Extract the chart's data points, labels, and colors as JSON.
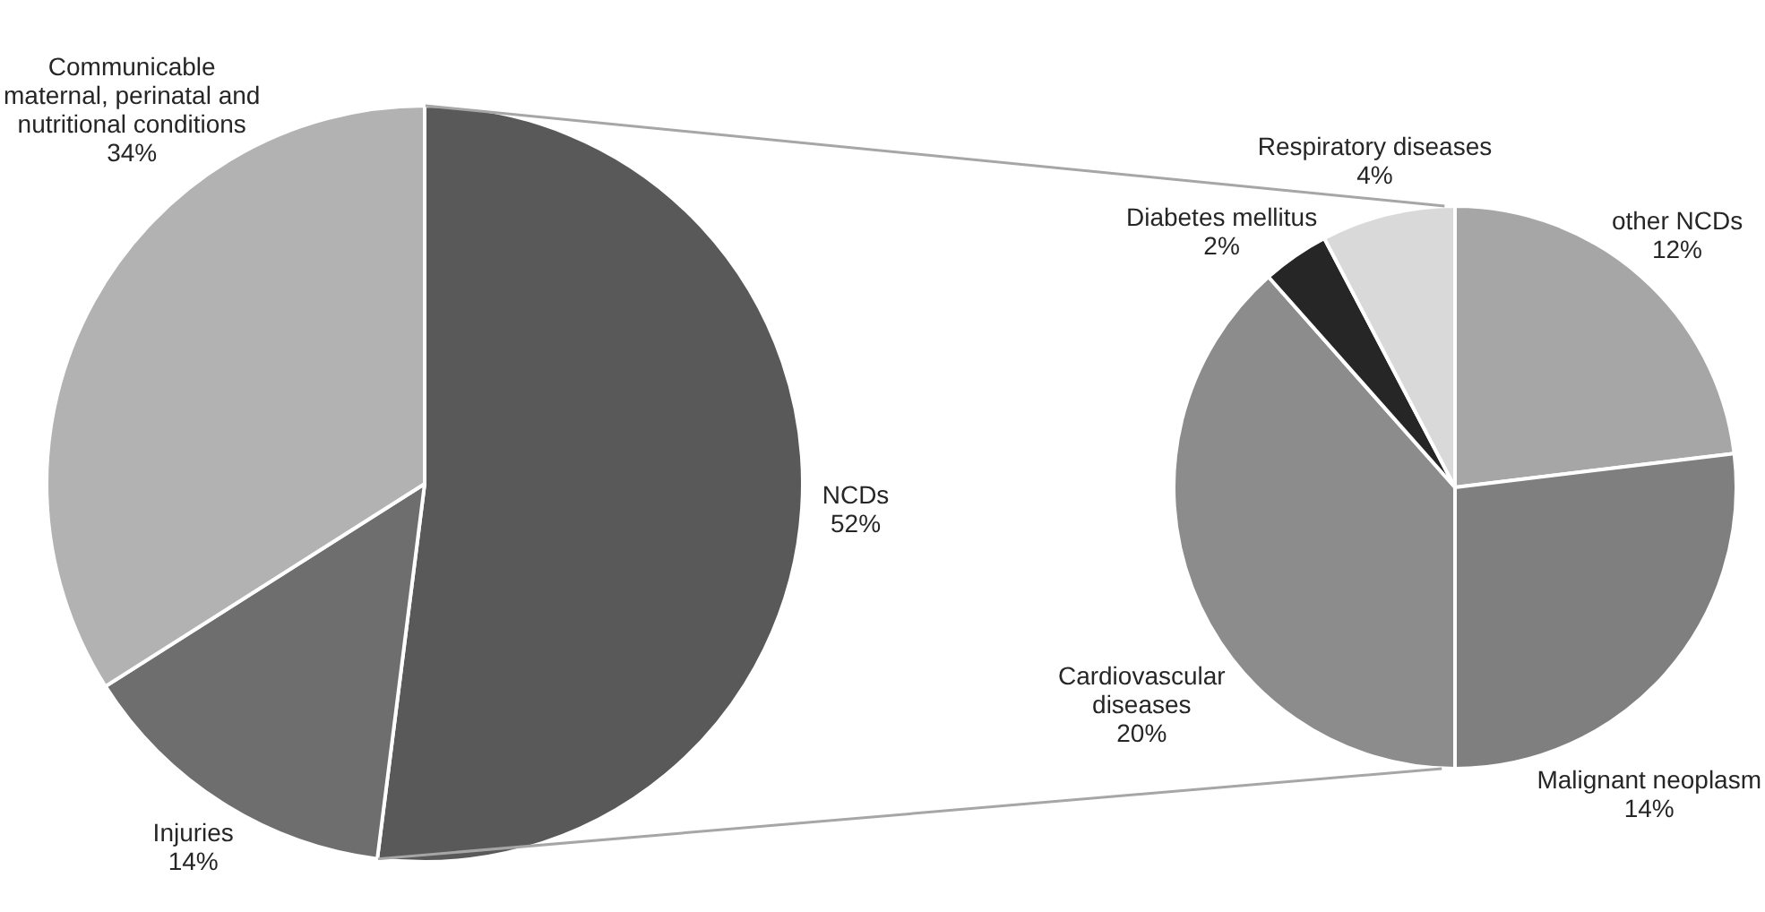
{
  "chart_data": [
    {
      "type": "pie",
      "categories": [
        "NCDs",
        "Injuries",
        "Communicable maternal, perinatal and nutritional conditions"
      ],
      "values": [
        52,
        14,
        34
      ],
      "colors": [
        "#595959",
        "#6e6e6e",
        "#b2b2b2"
      ],
      "value_labels": [
        "52%",
        "14%",
        "34%"
      ]
    },
    {
      "type": "pie",
      "categories": [
        "other NCDs",
        "Malignant neoplasm",
        "Cardiovascular diseases",
        "Diabetes mellitus",
        "Respiratory diseases"
      ],
      "values": [
        12,
        14,
        20,
        2,
        4
      ],
      "colors": [
        "#a6a6a6",
        "#7f7f7f",
        "#8c8c8c",
        "#262626",
        "#d9d9d9"
      ],
      "value_labels": [
        "12%",
        "14%",
        "20%",
        "2%",
        "4%"
      ]
    }
  ]
}
